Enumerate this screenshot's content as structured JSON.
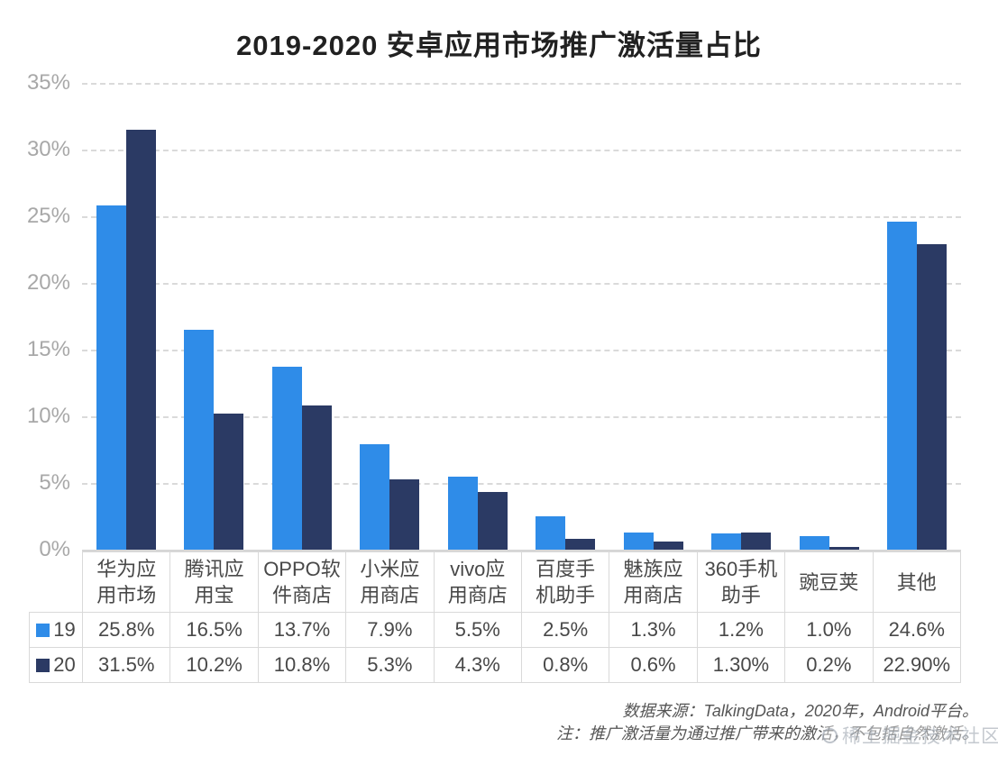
{
  "title": "2019-2020 安卓应用市场推广激活量占比",
  "colors": {
    "series_19": "#2F8CE8",
    "series_20": "#2B3A64",
    "gridline": "#DADADA",
    "axis": "#D6D6D6",
    "table_border": "#D9D9D9",
    "label_gray": "#A8A8A8",
    "text_dark": "#484848",
    "footer_text": "#555555"
  },
  "chart_data": {
    "type": "bar",
    "title": "2019-2020 安卓应用市场推广激活量占比",
    "categories": [
      "华为应用市场",
      "腾讯应用宝",
      "OPPO软件商店",
      "小米应用商店",
      "vivo应用商店",
      "百度手机助手",
      "魅族应用商店",
      "360手机助手",
      "豌豆荚",
      "其他"
    ],
    "series": [
      {
        "name": "19",
        "color": "#2F8CE8",
        "values": [
          25.8,
          16.5,
          13.7,
          7.9,
          5.5,
          2.5,
          1.3,
          1.2,
          1.0,
          24.6
        ]
      },
      {
        "name": "20",
        "color": "#2B3A64",
        "values": [
          31.5,
          10.2,
          10.8,
          5.3,
          4.3,
          0.8,
          0.6,
          1.3,
          0.2,
          22.9
        ]
      }
    ],
    "xlabel": "",
    "ylabel": "",
    "ylim": [
      0,
      35
    ],
    "yticks": [
      "0%",
      "5%",
      "10%",
      "15%",
      "20%",
      "25%",
      "30%",
      "35%"
    ],
    "grid": "horizontal-dashed",
    "legend_position": "table-left"
  },
  "table": {
    "category_labels": [
      "华为应\n用市场",
      "腾讯应\n用宝",
      "OPPO软\n件商店",
      "小米应\n用商店",
      "vivo应\n用商店",
      "百度手\n机助手",
      "魅族应\n用商店",
      "360手机\n助手",
      "豌豆荚",
      "其他"
    ],
    "rows": [
      {
        "legend": "19",
        "swatch_color": "#2F8CE8",
        "cells": [
          "25.8%",
          "16.5%",
          "13.7%",
          "7.9%",
          "5.5%",
          "2.5%",
          "1.3%",
          "1.2%",
          "1.0%",
          "24.6%"
        ]
      },
      {
        "legend": "20",
        "swatch_color": "#2B3A64",
        "cells": [
          "31.5%",
          "10.2%",
          "10.8%",
          "5.3%",
          "4.3%",
          "0.8%",
          "0.6%",
          "1.30%",
          "0.2%",
          "22.90%"
        ]
      }
    ]
  },
  "footer": {
    "source": "数据来源：TalkingData，2020年，Android平台。",
    "note": "注：推广激活量为通过推广带来的激活，不包括自然激活。"
  },
  "watermark": {
    "text": "稀土掘金技术社区"
  }
}
